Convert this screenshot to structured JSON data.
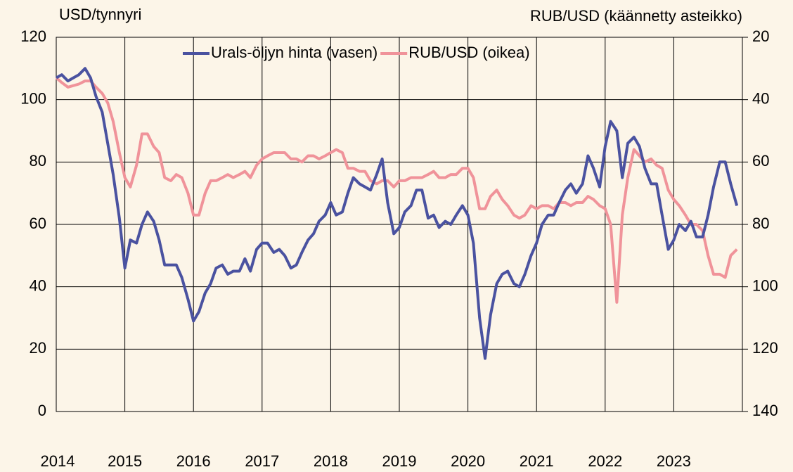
{
  "chart_data": {
    "type": "line",
    "y_label": "USD/tynnyri",
    "y2_label": "RUB/USD (käännetty asteikko)",
    "x": [
      2014,
      2014.08,
      2014.17,
      2014.25,
      2014.33,
      2014.42,
      2014.5,
      2014.58,
      2014.67,
      2014.75,
      2014.83,
      2014.92,
      2015,
      2015.08,
      2015.17,
      2015.25,
      2015.33,
      2015.42,
      2015.5,
      2015.58,
      2015.67,
      2015.75,
      2015.83,
      2015.92,
      2016,
      2016.08,
      2016.17,
      2016.25,
      2016.33,
      2016.42,
      2016.5,
      2016.58,
      2016.67,
      2016.75,
      2016.83,
      2016.92,
      2017,
      2017.08,
      2017.17,
      2017.25,
      2017.33,
      2017.42,
      2017.5,
      2017.58,
      2017.67,
      2017.75,
      2017.83,
      2017.92,
      2018,
      2018.08,
      2018.17,
      2018.25,
      2018.33,
      2018.42,
      2018.5,
      2018.58,
      2018.67,
      2018.75,
      2018.83,
      2018.92,
      2019,
      2019.08,
      2019.17,
      2019.25,
      2019.33,
      2019.42,
      2019.5,
      2019.58,
      2019.67,
      2019.75,
      2019.83,
      2019.92,
      2020,
      2020.08,
      2020.17,
      2020.25,
      2020.33,
      2020.42,
      2020.5,
      2020.58,
      2020.67,
      2020.75,
      2020.83,
      2020.92,
      2021,
      2021.08,
      2021.17,
      2021.25,
      2021.33,
      2021.42,
      2021.5,
      2021.58,
      2021.67,
      2021.75,
      2021.83,
      2021.92,
      2022,
      2022.08,
      2022.17,
      2022.25,
      2022.33,
      2022.42,
      2022.5,
      2022.58,
      2022.67,
      2022.75,
      2022.83,
      2022.92,
      2023,
      2023.08,
      2023.17,
      2023.25,
      2023.33,
      2023.42,
      2023.5,
      2023.58,
      2023.67,
      2023.75,
      2023.83,
      2023.92
    ],
    "series": [
      {
        "name": "Urals-öljyn hinta (vasen)",
        "color": "#4a52a0",
        "values": [
          107,
          108,
          106,
          107,
          108,
          110,
          107,
          101,
          96,
          86,
          76,
          62,
          46,
          55,
          54,
          60,
          64,
          61,
          55,
          47,
          47,
          47,
          43,
          36,
          29,
          32,
          38,
          41,
          46,
          47,
          44,
          45,
          45,
          49,
          45,
          52,
          54,
          54,
          51,
          52,
          50,
          46,
          47,
          51,
          55,
          57,
          61,
          63,
          67,
          63,
          64,
          70,
          75,
          73,
          72,
          71,
          76,
          81,
          67,
          57,
          59,
          64,
          66,
          71,
          71,
          62,
          63,
          59,
          61,
          60,
          63,
          66,
          63,
          54,
          30,
          17,
          31,
          41,
          44,
          45,
          41,
          40,
          44,
          50,
          54,
          60,
          63,
          63,
          67,
          71,
          73,
          70,
          73,
          82,
          78,
          72,
          85,
          93,
          90,
          75,
          86,
          88,
          85,
          78,
          73,
          73,
          63,
          52,
          55,
          60,
          58,
          61,
          56,
          56,
          63,
          72,
          80,
          80,
          73,
          66
        ]
      },
      {
        "name": "RUB/USD (oikea)",
        "color": "#f0939a",
        "axis": "y2",
        "values": [
          33,
          34.5,
          36,
          35.5,
          35,
          34,
          34,
          36,
          38,
          41,
          47,
          57,
          65,
          68,
          61,
          51,
          51,
          55,
          57,
          65,
          66,
          64,
          65,
          70,
          77,
          77,
          70,
          66,
          66,
          65,
          64,
          65,
          64,
          63,
          65,
          61,
          59,
          58,
          57,
          57,
          57,
          59,
          59,
          60,
          58,
          58,
          59,
          58,
          57,
          56,
          57,
          62,
          62,
          63,
          63,
          66,
          67,
          66,
          66,
          68,
          66,
          66,
          65,
          65,
          65,
          64,
          63,
          65,
          65,
          64,
          64,
          62,
          62,
          65,
          75,
          75,
          71,
          69,
          72,
          74,
          77,
          78,
          77,
          74,
          75,
          74,
          74,
          75,
          73,
          73,
          74,
          73,
          73,
          71,
          72,
          74,
          75,
          80,
          105,
          77,
          65,
          56,
          58,
          60,
          59,
          61,
          62,
          69,
          72,
          74,
          77,
          80,
          80,
          82,
          90,
          96,
          96,
          97,
          90,
          88
        ]
      }
    ],
    "xlim": [
      2014,
      2024
    ],
    "xticks": [
      2014,
      2015,
      2016,
      2017,
      2018,
      2019,
      2020,
      2021,
      2022,
      2023
    ],
    "ylim": [
      0,
      120
    ],
    "yticks": [
      0,
      20,
      40,
      60,
      80,
      100,
      120
    ],
    "y2lim": [
      140,
      20
    ],
    "y2ticks": [
      20,
      40,
      60,
      80,
      100,
      120,
      140
    ],
    "grid": true,
    "legend": "top"
  }
}
